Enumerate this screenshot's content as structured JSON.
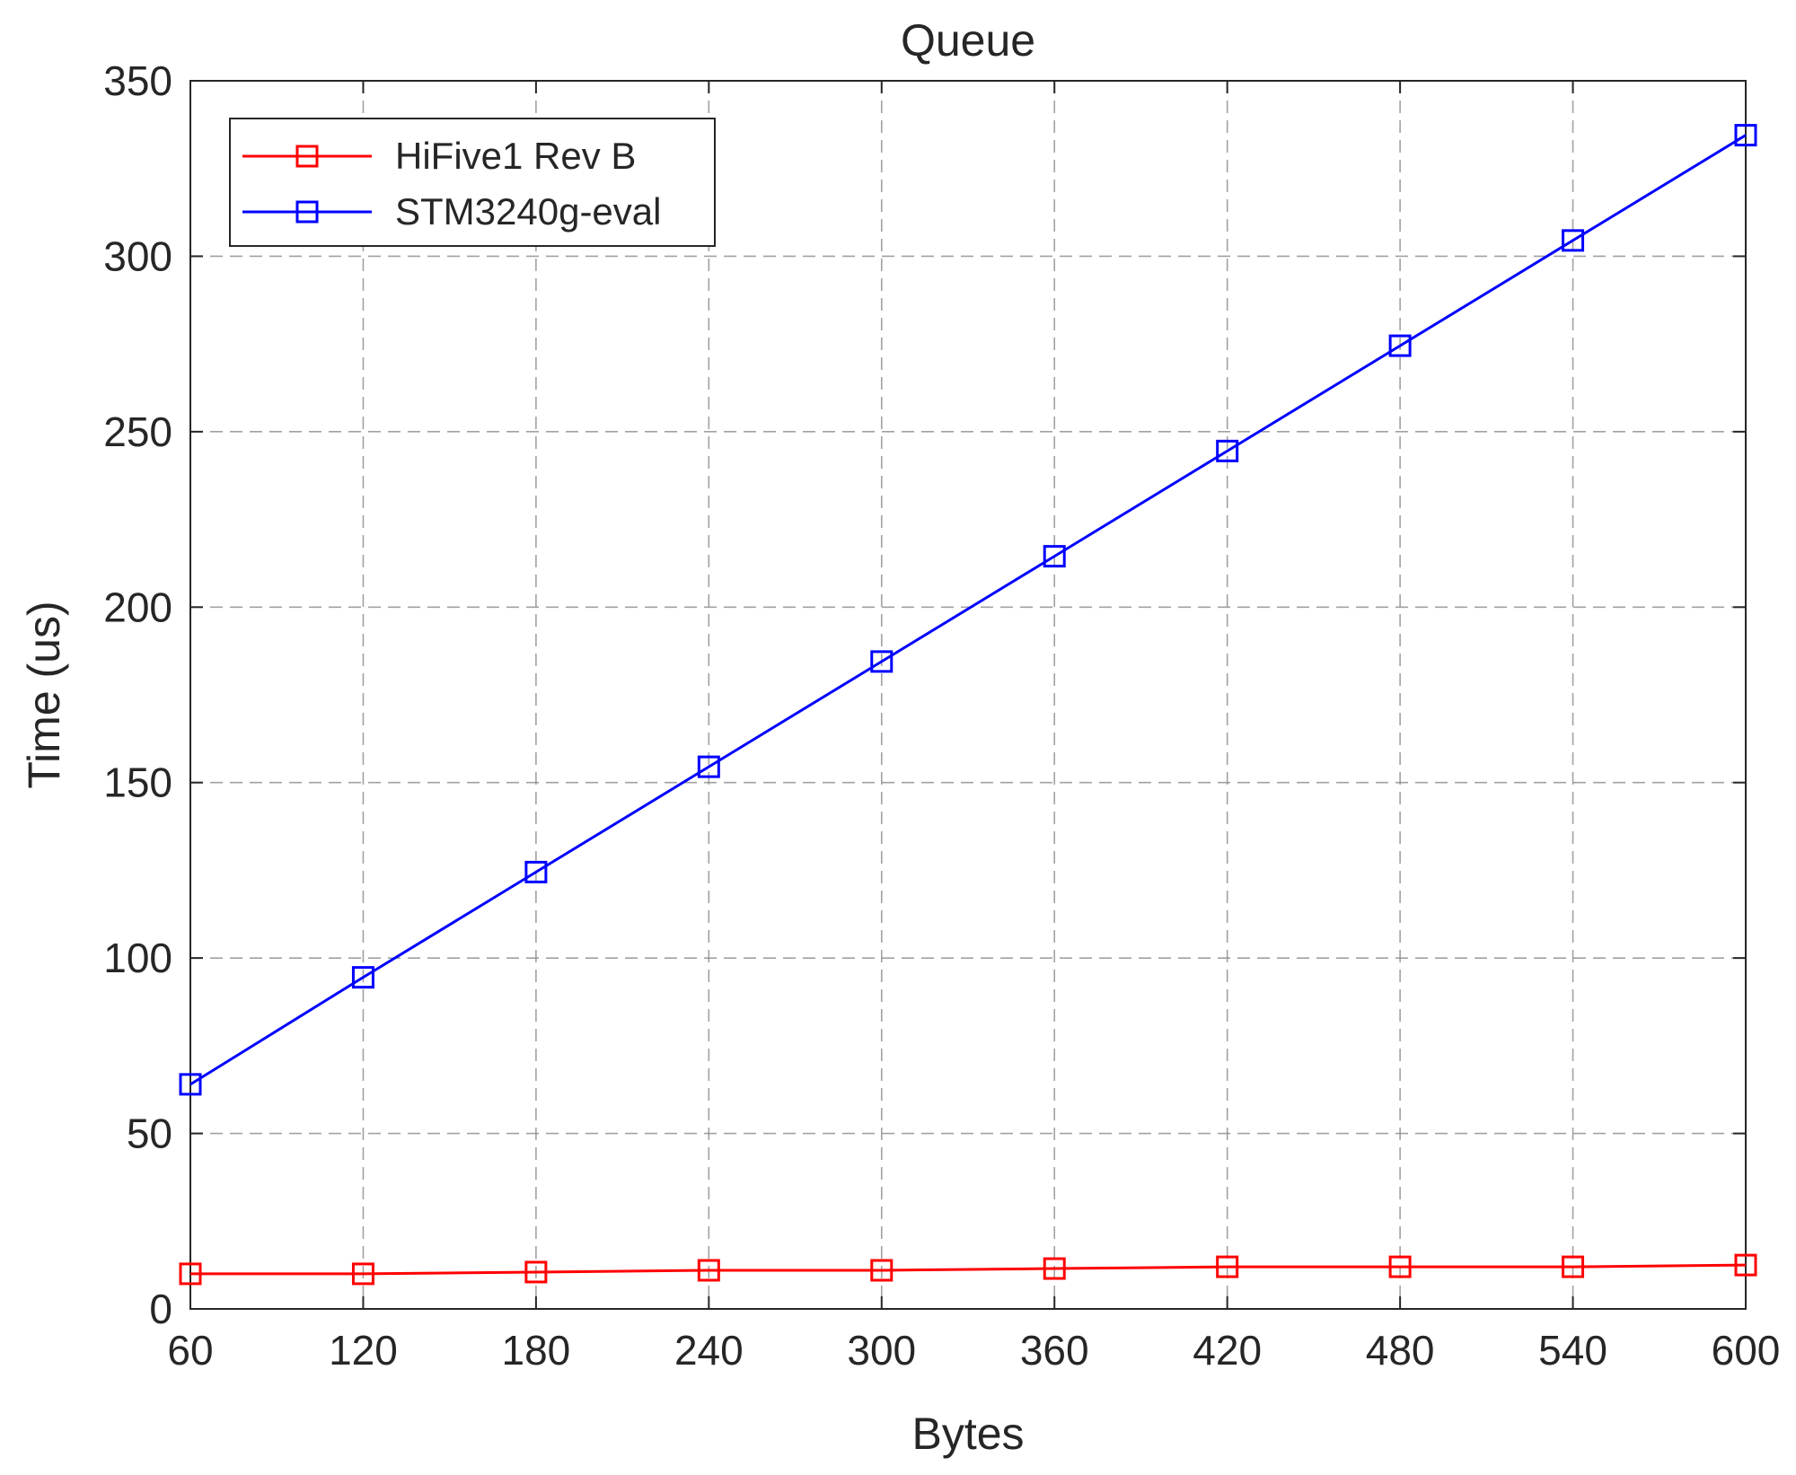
{
  "chart_data": {
    "type": "line",
    "title": "Queue",
    "xlabel": "Bytes",
    "ylabel": "Time (us)",
    "x": [
      60,
      120,
      180,
      240,
      300,
      360,
      420,
      480,
      540,
      600
    ],
    "xlim": [
      60,
      600
    ],
    "ylim": [
      0,
      350
    ],
    "xticks": [
      "60",
      "120",
      "180",
      "240",
      "300",
      "360",
      "420",
      "480",
      "540",
      "600"
    ],
    "yticks": [
      "0",
      "50",
      "100",
      "150",
      "200",
      "250",
      "300",
      "350"
    ],
    "grid": true,
    "legend_position": "top-left",
    "marker": "square",
    "series": [
      {
        "name": "HiFive1 Rev B",
        "color": "#ff0000",
        "values": [
          10,
          10,
          10.5,
          11,
          11,
          11.5,
          12,
          12,
          12,
          12.5
        ]
      },
      {
        "name": "STM3240g-eval",
        "color": "#0000ff",
        "values": [
          64,
          94.5,
          124.5,
          154.5,
          184.5,
          214.5,
          244.5,
          274.5,
          304.5,
          334.5
        ]
      }
    ]
  }
}
